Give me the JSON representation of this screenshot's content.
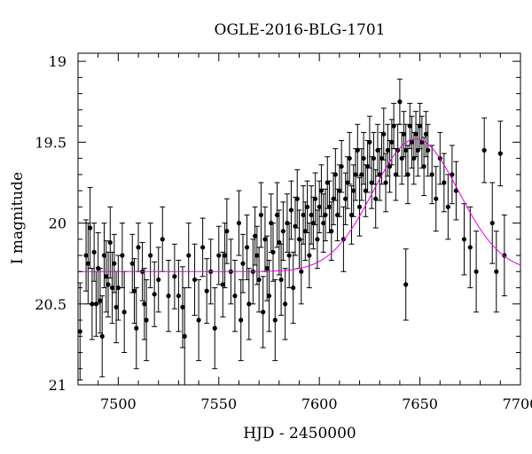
{
  "chart_data": {
    "type": "scatter",
    "title": "OGLE-2016-BLG-1701",
    "xlabel": "HJD - 2450000",
    "ylabel": "I magnitude",
    "xlim": [
      7480,
      7700
    ],
    "ylim": [
      21,
      18.95
    ],
    "y_inverted": true,
    "xticks": [
      7500,
      7550,
      7600,
      7650,
      7700
    ],
    "xtick_labels": [
      "7500",
      "7550",
      "7600",
      "7650",
      "7700"
    ],
    "yticks": [
      19,
      19.5,
      20,
      20.5,
      21
    ],
    "ytick_labels": [
      "19",
      "19.5",
      "20",
      "20.5",
      "21"
    ],
    "grid": false,
    "colors": {
      "points": "#000000",
      "model": "#e600e6"
    },
    "series": [
      {
        "type": "scatter_errorbar",
        "points": [
          [
            7481,
            20.67,
            0.3
          ],
          [
            7484,
            20.2,
            0.22
          ],
          [
            7485,
            20.25,
            0.25
          ],
          [
            7486,
            20.03,
            0.25
          ],
          [
            7487,
            20.5,
            0.22
          ],
          [
            7488,
            20.18,
            0.18
          ],
          [
            7489,
            20.5,
            0.2
          ],
          [
            7490,
            20.28,
            0.22
          ],
          [
            7491,
            20.48,
            0.2
          ],
          [
            7492,
            20.7,
            0.25
          ],
          [
            7493,
            20.2,
            0.2
          ],
          [
            7494,
            20.33,
            0.22
          ],
          [
            7495,
            20.38,
            0.2
          ],
          [
            7496,
            20.12,
            0.22
          ],
          [
            7497,
            20.4,
            0.22
          ],
          [
            7498,
            20.25,
            0.18
          ],
          [
            7499,
            20.52,
            0.22
          ],
          [
            7500,
            20.4,
            0.2
          ],
          [
            7502,
            20.2,
            0.2
          ],
          [
            7503,
            20.55,
            0.25
          ],
          [
            7507,
            20.25,
            0.18
          ],
          [
            7508,
            20.42,
            0.2
          ],
          [
            7509,
            20.65,
            0.25
          ],
          [
            7510,
            20.15,
            0.15
          ],
          [
            7512,
            20.3,
            0.18
          ],
          [
            7513,
            20.5,
            0.22
          ],
          [
            7514,
            20.6,
            0.25
          ],
          [
            7516,
            20.2,
            0.2
          ],
          [
            7518,
            20.44,
            0.2
          ],
          [
            7520,
            20.35,
            0.2
          ],
          [
            7522,
            20.1,
            0.2
          ],
          [
            7525,
            20.45,
            0.22
          ],
          [
            7528,
            20.33,
            0.2
          ],
          [
            7530,
            20.45,
            0.22
          ],
          [
            7532,
            20.52,
            0.25
          ],
          [
            7533,
            20.7,
            0.3
          ],
          [
            7535,
            20.2,
            0.2
          ],
          [
            7538,
            20.35,
            0.22
          ],
          [
            7540,
            20.6,
            0.25
          ],
          [
            7542,
            20.15,
            0.18
          ],
          [
            7544,
            20.42,
            0.2
          ],
          [
            7546,
            20.3,
            0.2
          ],
          [
            7548,
            20.65,
            0.25
          ],
          [
            7550,
            20.2,
            0.18
          ],
          [
            7552,
            20.38,
            0.2
          ],
          [
            7553,
            20.2,
            0.2
          ],
          [
            7554,
            20.05,
            0.2
          ],
          [
            7556,
            20.3,
            0.2
          ],
          [
            7558,
            20.45,
            0.22
          ],
          [
            7560,
            20.0,
            0.2
          ],
          [
            7561,
            20.6,
            0.25
          ],
          [
            7562,
            20.25,
            0.18
          ],
          [
            7564,
            20.15,
            0.2
          ],
          [
            7565,
            20.5,
            0.22
          ],
          [
            7567,
            20.3,
            0.2
          ],
          [
            7568,
            20.08,
            0.18
          ],
          [
            7569,
            20.2,
            0.18
          ],
          [
            7570,
            20.35,
            0.2
          ],
          [
            7571,
            19.95,
            0.2
          ],
          [
            7572,
            20.55,
            0.22
          ],
          [
            7573,
            20.1,
            0.2
          ],
          [
            7574,
            20.28,
            0.2
          ],
          [
            7575,
            20.45,
            0.22
          ],
          [
            7576,
            20.0,
            0.18
          ],
          [
            7577,
            20.18,
            0.18
          ],
          [
            7578,
            20.6,
            0.25
          ],
          [
            7579,
            19.95,
            0.2
          ],
          [
            7580,
            20.12,
            0.2
          ],
          [
            7581,
            20.35,
            0.22
          ],
          [
            7582,
            20.05,
            0.18
          ],
          [
            7583,
            20.5,
            0.22
          ],
          [
            7584,
            20.0,
            0.18
          ],
          [
            7585,
            20.2,
            0.2
          ],
          [
            7586,
            19.92,
            0.18
          ],
          [
            7587,
            20.4,
            0.22
          ],
          [
            7588,
            20.02,
            0.18
          ],
          [
            7589,
            19.85,
            0.18
          ],
          [
            7590,
            20.1,
            0.18
          ],
          [
            7591,
            20.3,
            0.2
          ],
          [
            7592,
            19.95,
            0.18
          ],
          [
            7593,
            20.05,
            0.18
          ],
          [
            7594,
            19.9,
            0.16
          ],
          [
            7595,
            20.2,
            0.2
          ],
          [
            7596,
            19.95,
            0.18
          ],
          [
            7597,
            20.0,
            0.16
          ],
          [
            7598,
            19.85,
            0.16
          ],
          [
            7599,
            20.1,
            0.18
          ],
          [
            7600,
            19.9,
            0.16
          ],
          [
            7601,
            19.8,
            0.16
          ],
          [
            7602,
            20.0,
            0.18
          ],
          [
            7603,
            19.95,
            0.16
          ],
          [
            7604,
            19.75,
            0.16
          ],
          [
            7605,
            19.9,
            0.16
          ],
          [
            7606,
            20.05,
            0.18
          ],
          [
            7607,
            19.85,
            0.16
          ],
          [
            7608,
            19.7,
            0.16
          ],
          [
            7609,
            19.95,
            0.16
          ],
          [
            7610,
            19.8,
            0.16
          ],
          [
            7611,
            19.65,
            0.16
          ],
          [
            7612,
            20.1,
            0.2
          ],
          [
            7613,
            19.85,
            0.16
          ],
          [
            7614,
            19.75,
            0.16
          ],
          [
            7615,
            19.6,
            0.16
          ],
          [
            7616,
            19.95,
            0.18
          ],
          [
            7617,
            19.8,
            0.16
          ],
          [
            7618,
            19.7,
            0.16
          ],
          [
            7619,
            19.55,
            0.16
          ],
          [
            7620,
            19.9,
            0.18
          ],
          [
            7621,
            19.7,
            0.16
          ],
          [
            7622,
            19.6,
            0.16
          ],
          [
            7623,
            19.8,
            0.16
          ],
          [
            7624,
            19.65,
            0.16
          ],
          [
            7625,
            19.5,
            0.16
          ],
          [
            7626,
            19.75,
            0.16
          ],
          [
            7627,
            19.6,
            0.16
          ],
          [
            7628,
            19.85,
            0.18
          ],
          [
            7629,
            19.55,
            0.16
          ],
          [
            7630,
            19.7,
            0.16
          ],
          [
            7631,
            19.6,
            0.16
          ],
          [
            7632,
            19.45,
            0.16
          ],
          [
            7633,
            19.75,
            0.18
          ],
          [
            7634,
            19.55,
            0.16
          ],
          [
            7635,
            19.65,
            0.16
          ],
          [
            7636,
            19.5,
            0.14
          ],
          [
            7637,
            19.4,
            0.14
          ],
          [
            7638,
            19.7,
            0.16
          ],
          [
            7639,
            19.55,
            0.16
          ],
          [
            7640,
            19.25,
            0.14
          ],
          [
            7641,
            19.6,
            0.16
          ],
          [
            7642,
            19.45,
            0.14
          ],
          [
            7643,
            19.55,
            0.16
          ],
          [
            7644,
            19.7,
            0.18
          ],
          [
            7645,
            19.4,
            0.14
          ],
          [
            7646,
            19.5,
            0.16
          ],
          [
            7647,
            19.6,
            0.16
          ],
          [
            7648,
            19.45,
            0.14
          ],
          [
            7649,
            19.55,
            0.16
          ],
          [
            7650,
            19.4,
            0.14
          ],
          [
            7651,
            19.5,
            0.16
          ],
          [
            7652,
            19.65,
            0.18
          ],
          [
            7653,
            19.45,
            0.14
          ],
          [
            7654,
            19.55,
            0.16
          ],
          [
            7656,
            19.7,
            0.18
          ],
          [
            7658,
            19.85,
            0.2
          ],
          [
            7660,
            19.6,
            0.16
          ],
          [
            7662,
            19.75,
            0.18
          ],
          [
            7664,
            19.9,
            0.2
          ],
          [
            7666,
            19.7,
            0.18
          ],
          [
            7668,
            19.8,
            0.18
          ],
          [
            7672,
            20.1,
            0.22
          ],
          [
            7675,
            20.15,
            0.25
          ],
          [
            7678,
            20.3,
            0.25
          ],
          [
            7682,
            19.55,
            0.2
          ],
          [
            7686,
            20.0,
            0.25
          ],
          [
            7688,
            20.3,
            0.25
          ],
          [
            7690,
            19.57,
            0.2
          ],
          [
            7692,
            20.2,
            0.25
          ],
          [
            7643,
            20.38,
            0.22
          ]
        ]
      },
      {
        "type": "model_curve",
        "name": "",
        "model": {
          "baseline": 20.3,
          "peak": 19.48,
          "t0": 7648,
          "tE": 30
        }
      }
    ]
  }
}
